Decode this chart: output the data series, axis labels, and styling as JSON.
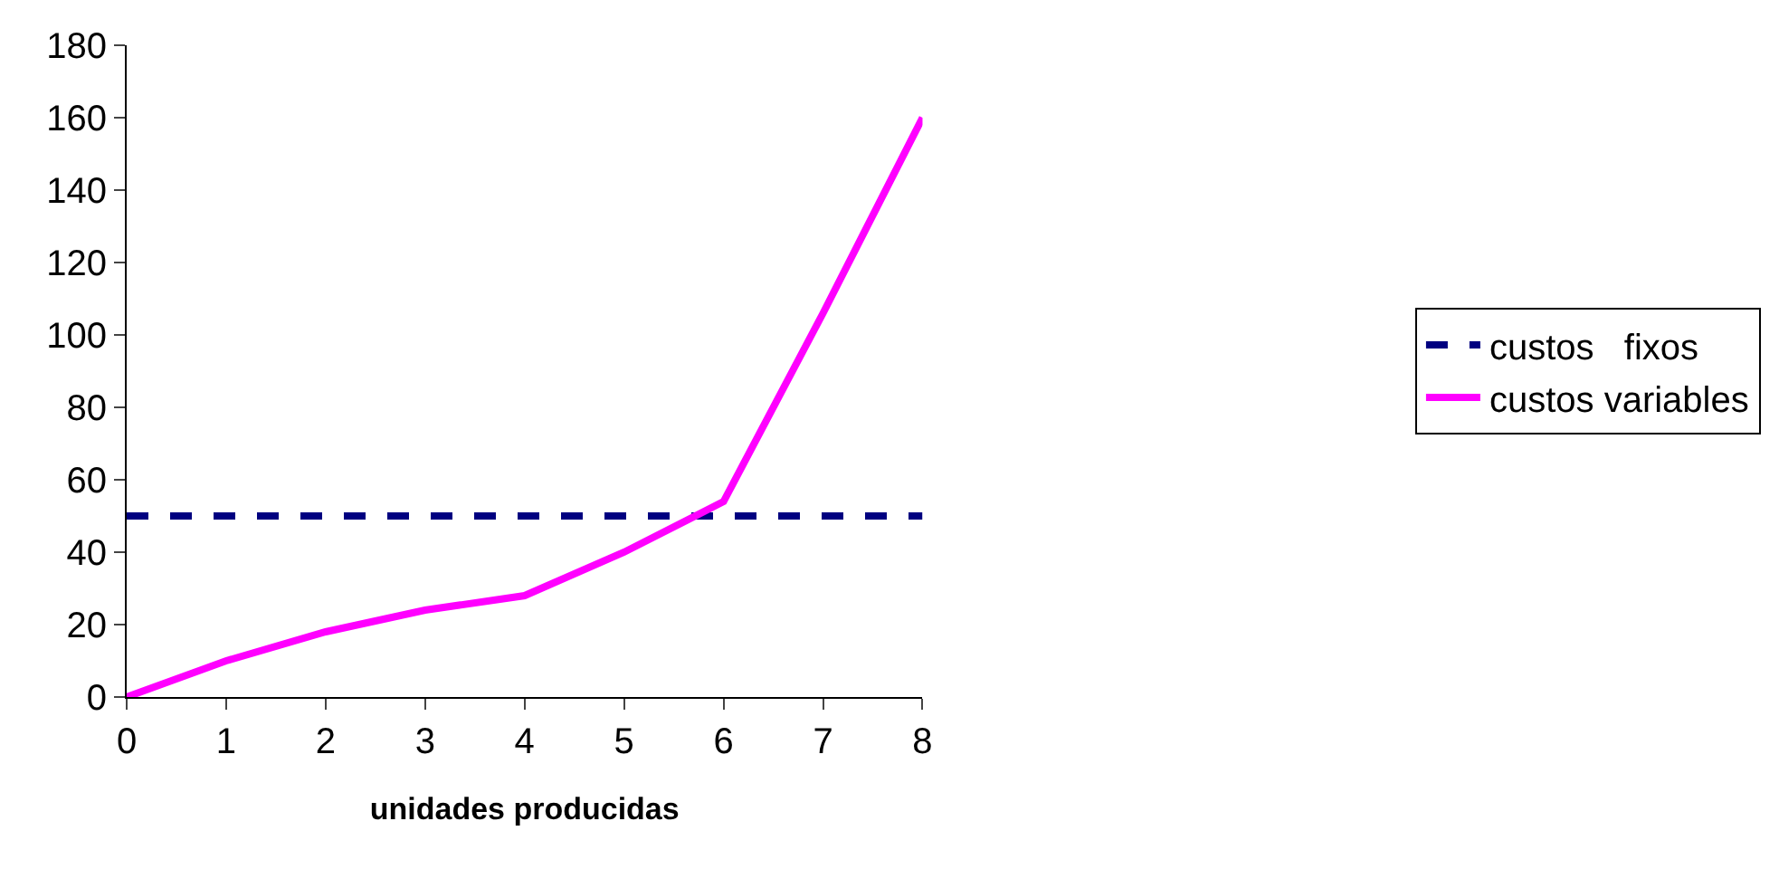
{
  "chart_data": {
    "type": "line",
    "xlabel": "unidades producidas",
    "x": [
      0,
      1,
      2,
      3,
      4,
      5,
      6,
      7,
      8
    ],
    "series": [
      {
        "name": "custos   fixos",
        "color": "#000080",
        "line_style": "dashed",
        "values": [
          50,
          50,
          50,
          50,
          50,
          50,
          50,
          50,
          50
        ]
      },
      {
        "name": "custos variables",
        "color": "#ff00ff",
        "line_style": "solid",
        "values": [
          0,
          10,
          18,
          24,
          28,
          40,
          54,
          106,
          160
        ]
      }
    ],
    "xlim": [
      0,
      8
    ],
    "xticks": [
      0,
      1,
      2,
      3,
      4,
      5,
      6,
      7,
      8
    ],
    "ylim": [
      0,
      180
    ],
    "yticks": [
      0,
      20,
      40,
      60,
      80,
      100,
      120,
      140,
      160,
      180
    ],
    "grid": false,
    "legend": "right",
    "marker": "none"
  }
}
